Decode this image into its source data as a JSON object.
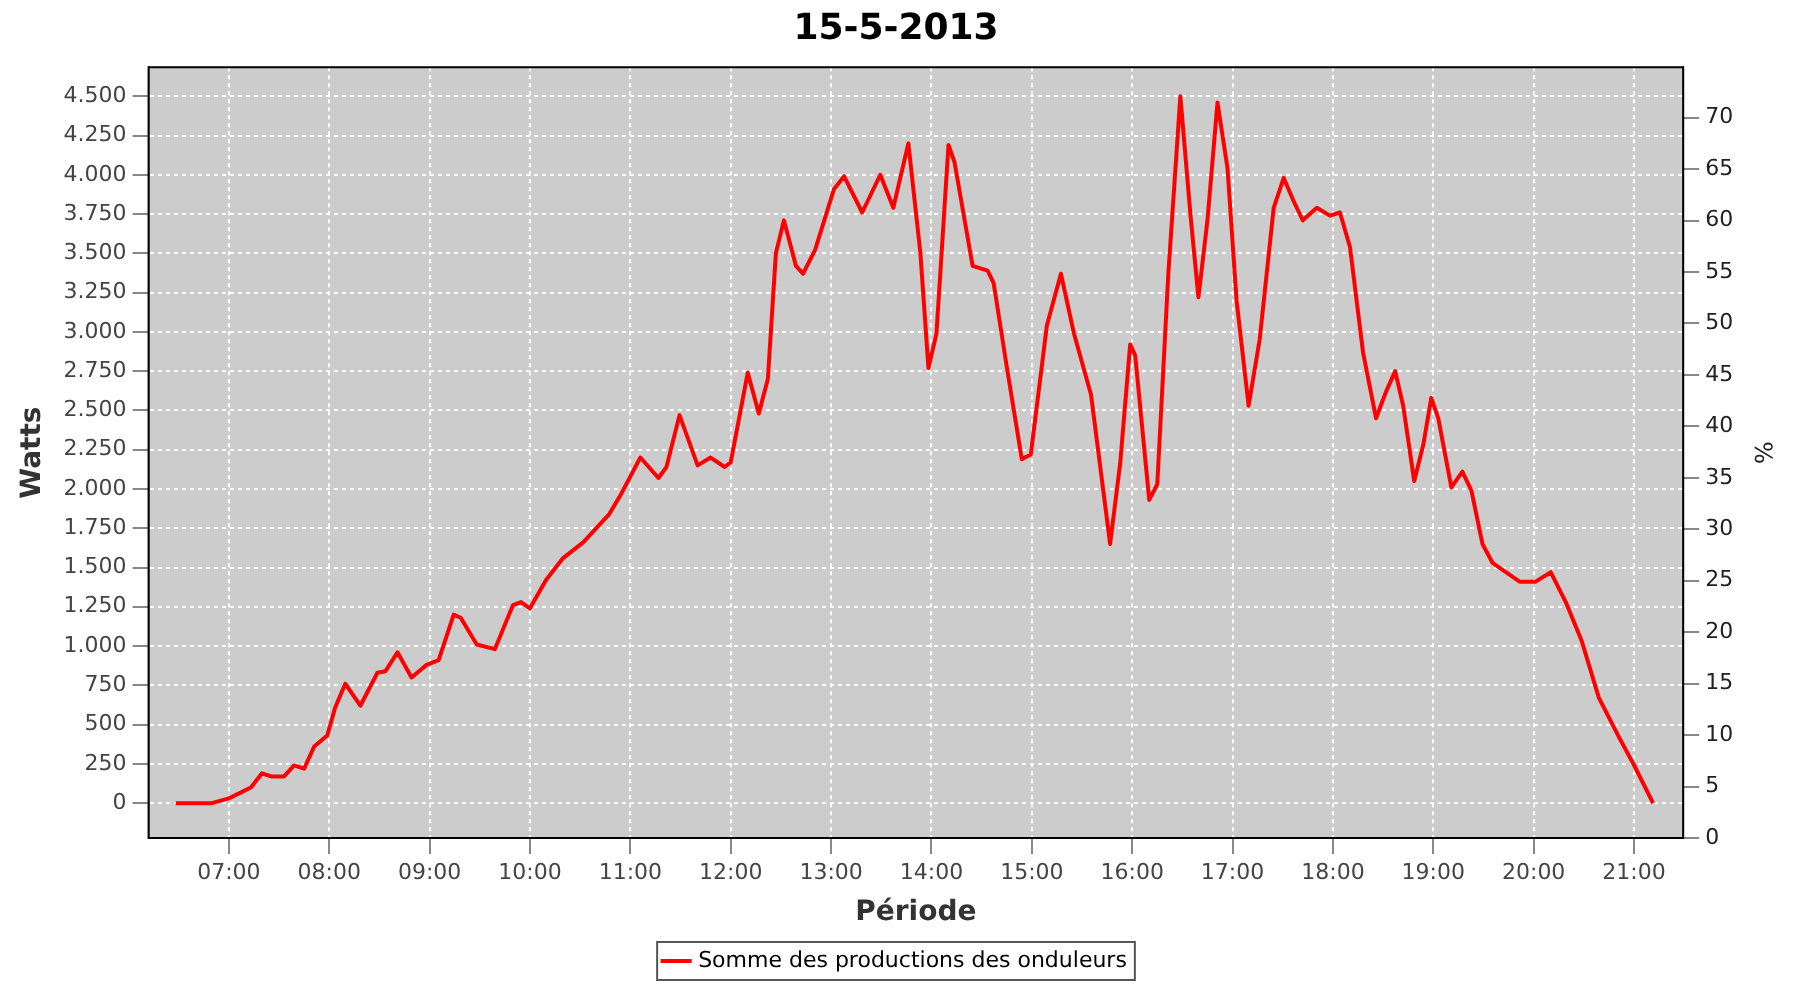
{
  "chart_data": {
    "type": "line",
    "title": "15-5-2013",
    "xlabel": "Période",
    "ylabel": "Watts",
    "y2label": "%",
    "x": [
      6.47,
      6.83,
      7.0,
      7.22,
      7.33,
      7.42,
      7.55,
      7.65,
      7.75,
      7.85,
      7.98,
      8.06,
      8.16,
      8.31,
      8.48,
      8.56,
      8.68,
      8.82,
      8.97,
      9.09,
      9.24,
      9.31,
      9.47,
      9.65,
      9.83,
      9.91,
      10.0,
      10.16,
      10.33,
      10.53,
      10.79,
      10.91,
      11.1,
      11.28,
      11.36,
      11.49,
      11.67,
      11.8,
      11.94,
      12.0,
      12.17,
      12.28,
      12.37,
      12.45,
      12.53,
      12.65,
      12.72,
      12.84,
      13.03,
      13.13,
      13.31,
      13.49,
      13.62,
      13.77,
      13.89,
      13.97,
      14.05,
      14.17,
      14.23,
      14.41,
      14.56,
      14.62,
      14.75,
      14.9,
      14.99,
      15.15,
      15.29,
      15.42,
      15.59,
      15.78,
      15.88,
      15.98,
      16.03,
      16.17,
      16.25,
      16.36,
      16.48,
      16.58,
      16.66,
      16.75,
      16.85,
      16.95,
      17.04,
      17.16,
      17.27,
      17.41,
      17.51,
      17.61,
      17.7,
      17.84,
      17.97,
      18.07,
      18.17,
      18.3,
      18.43,
      18.53,
      18.62,
      18.7,
      18.81,
      18.9,
      18.98,
      19.05,
      19.18,
      19.29,
      19.38,
      19.49,
      19.59,
      19.86,
      20.02,
      20.17,
      20.32,
      20.48,
      20.65,
      20.85,
      21.01,
      21.19
    ],
    "series": [
      {
        "name": "Somme des productions des onduleurs",
        "color": "#ff0000",
        "values": [
          0,
          0,
          30,
          100,
          190,
          170,
          170,
          240,
          220,
          360,
          430,
          610,
          760,
          620,
          830,
          840,
          960,
          800,
          880,
          910,
          1200,
          1180,
          1010,
          980,
          1260,
          1280,
          1240,
          1420,
          1560,
          1660,
          1840,
          1970,
          2200,
          2070,
          2140,
          2470,
          2150,
          2200,
          2140,
          2170,
          2740,
          2480,
          2700,
          3500,
          3710,
          3420,
          3370,
          3520,
          3910,
          3990,
          3760,
          4000,
          3790,
          4200,
          3500,
          2770,
          2990,
          4190,
          4080,
          3420,
          3390,
          3310,
          2780,
          2190,
          2220,
          3040,
          3370,
          2990,
          2600,
          1650,
          2160,
          2920,
          2850,
          1930,
          2030,
          3370,
          4500,
          3750,
          3220,
          3710,
          4460,
          4040,
          3200,
          2530,
          2950,
          3790,
          3980,
          3830,
          3710,
          3790,
          3740,
          3760,
          3540,
          2870,
          2450,
          2620,
          2750,
          2530,
          2050,
          2280,
          2580,
          2450,
          2010,
          2110,
          1990,
          1650,
          1530,
          1410,
          1410,
          1470,
          1280,
          1030,
          670,
          420,
          230,
          0
        ]
      }
    ],
    "xlim": [
      6.2,
      21.49
    ],
    "xticks": [
      {
        "value": 7,
        "label": "07:00"
      },
      {
        "value": 8,
        "label": "08:00"
      },
      {
        "value": 9,
        "label": "09:00"
      },
      {
        "value": 10,
        "label": "10:00"
      },
      {
        "value": 11,
        "label": "11:00"
      },
      {
        "value": 12,
        "label": "12:00"
      },
      {
        "value": 13,
        "label": "13:00"
      },
      {
        "value": 14,
        "label": "14:00"
      },
      {
        "value": 15,
        "label": "15:00"
      },
      {
        "value": 16,
        "label": "16:00"
      },
      {
        "value": 17,
        "label": "17:00"
      },
      {
        "value": 18,
        "label": "18:00"
      },
      {
        "value": 19,
        "label": "19:00"
      },
      {
        "value": 20,
        "label": "20:00"
      },
      {
        "value": 21,
        "label": "21:00"
      }
    ],
    "ylim": [
      -222,
      4685
    ],
    "yticks": [
      0,
      250,
      500,
      750,
      {
        "value": 1000,
        "label": "1.000"
      },
      {
        "value": 1250,
        "label": "1.250"
      },
      {
        "value": 1500,
        "label": "1.500"
      },
      {
        "value": 1750,
        "label": "1.750"
      },
      {
        "value": 2000,
        "label": "2.000"
      },
      {
        "value": 2250,
        "label": "2.250"
      },
      {
        "value": 2500,
        "label": "2.500"
      },
      {
        "value": 2750,
        "label": "2.750"
      },
      {
        "value": 3000,
        "label": "3.000"
      },
      {
        "value": 3250,
        "label": "3.250"
      },
      {
        "value": 3500,
        "label": "3.500"
      },
      {
        "value": 3750,
        "label": "3.750"
      },
      {
        "value": 4000,
        "label": "4.000"
      },
      {
        "value": 4250,
        "label": "4.250"
      },
      {
        "value": 4500,
        "label": "4.500"
      }
    ],
    "y2lim": [
      0,
      74.9
    ],
    "y2ticks": [
      0,
      5,
      10,
      15,
      20,
      25,
      30,
      35,
      40,
      45,
      50,
      55,
      60,
      65,
      70
    ],
    "grid": true,
    "legend": "bottom",
    "marker": "none",
    "line_style": "solid"
  }
}
